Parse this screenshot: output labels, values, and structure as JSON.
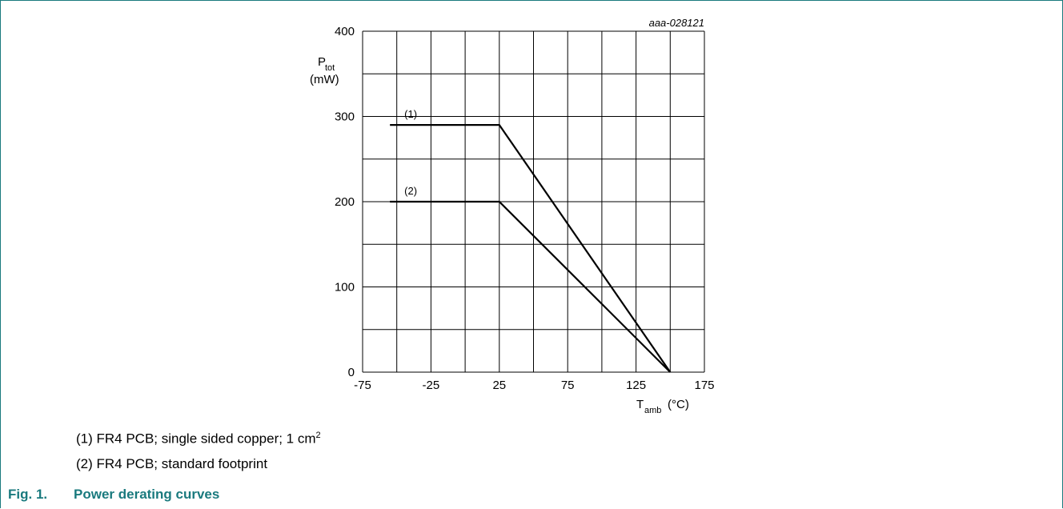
{
  "chart_data": {
    "type": "line",
    "id_label": "aaa-028121",
    "ylabel_main": "P",
    "ylabel_sub": "tot",
    "ylabel_unit": "(mW)",
    "xlabel_main": "T",
    "xlabel_sub": "amb",
    "xlabel_unit": "(°C)",
    "xlim": [
      -75,
      175
    ],
    "ylim": [
      0,
      400
    ],
    "xticks": [
      -75,
      -25,
      25,
      75,
      125,
      175
    ],
    "yticks": [
      0,
      100,
      200,
      300,
      400
    ],
    "grid": true,
    "series": [
      {
        "name": "(1)",
        "x": [
          -55,
          25,
          150
        ],
        "y": [
          290,
          290,
          0
        ]
      },
      {
        "name": "(2)",
        "x": [
          -55,
          25,
          150
        ],
        "y": [
          200,
          200,
          0
        ]
      }
    ]
  },
  "notes": {
    "note1_text": "(1) FR4 PCB; single sided copper; 1 cm",
    "note1_sup": "2",
    "note2_text": "(2) FR4 PCB; standard footprint"
  },
  "caption": {
    "number": "Fig. 1.",
    "title": "Power derating curves"
  },
  "colors": {
    "frame": "#1a7a7e",
    "caption": "#1a7a7e",
    "line": "#000000",
    "grid": "#000000"
  }
}
